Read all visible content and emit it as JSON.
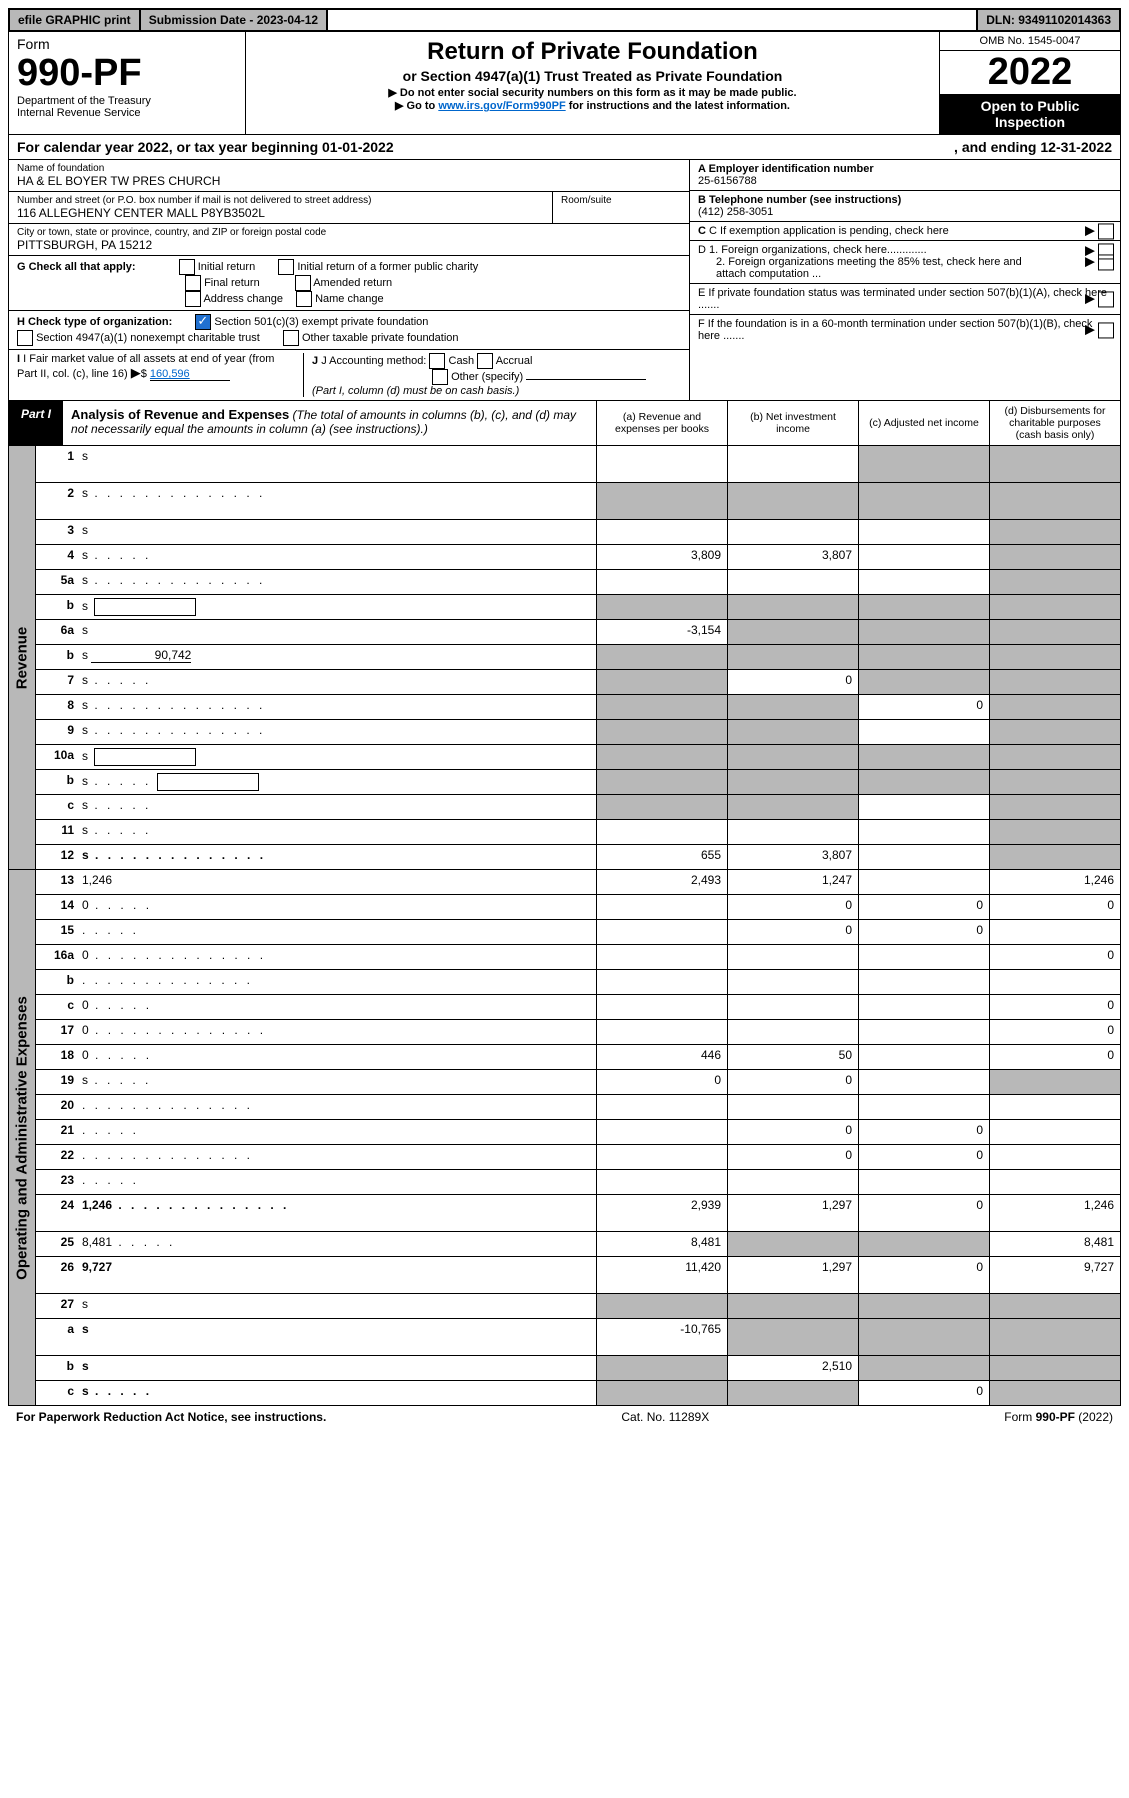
{
  "topbar": {
    "efile": "efile GRAPHIC print",
    "subdate_label": "Submission Date - ",
    "subdate": "2023-04-12",
    "dln_label": "DLN: ",
    "dln": "93491102014363"
  },
  "header": {
    "form_word": "Form",
    "form_num": "990-PF",
    "dept1": "Department of the Treasury",
    "dept2": "Internal Revenue Service",
    "title": "Return of Private Foundation",
    "subtitle": "or Section 4947(a)(1) Trust Treated as Private Foundation",
    "note1": "▶ Do not enter social security numbers on this form as it may be made public.",
    "note2a": "▶ Go to ",
    "note2_link": "www.irs.gov/Form990PF",
    "note2b": " for instructions and the latest information.",
    "omb": "OMB No. 1545-0047",
    "year": "2022",
    "open1": "Open to Public",
    "open2": "Inspection"
  },
  "calyear": {
    "left": "For calendar year 2022, or tax year beginning 01-01-2022",
    "right": ", and ending 12-31-2022"
  },
  "entity": {
    "name_label": "Name of foundation",
    "name": "HA & EL BOYER TW PRES CHURCH",
    "addr_label": "Number and street (or P.O. box number if mail is not delivered to street address)",
    "addr": "116 ALLEGHENY CENTER MALL P8YB3502L",
    "room_label": "Room/suite",
    "city_label": "City or town, state or province, country, and ZIP or foreign postal code",
    "city": "PITTSBURGH, PA  15212",
    "a_label": "A Employer identification number",
    "a_val": "25-6156788",
    "b_label": "B Telephone number (see instructions)",
    "b_val": "(412) 258-3051",
    "c_label": "C If exemption application is pending, check here",
    "d1": "D 1. Foreign organizations, check here.............",
    "d2": "2. Foreign organizations meeting the 85% test, check here and attach computation ...",
    "e_label": "E  If private foundation status was terminated under section 507(b)(1)(A), check here .......",
    "f_label": "F  If the foundation is in a 60-month termination under section 507(b)(1)(B), check here .......",
    "g_label": "G Check all that apply:",
    "g_opts": [
      "Initial return",
      "Initial return of a former public charity",
      "Final return",
      "Amended return",
      "Address change",
      "Name change"
    ],
    "h_label": "H Check type of organization:",
    "h_opts": [
      "Section 501(c)(3) exempt private foundation",
      "Section 4947(a)(1) nonexempt charitable trust",
      "Other taxable private foundation"
    ],
    "i_label": "I Fair market value of all assets at end of year (from Part II, col. (c), line 16)",
    "i_val": "160,596",
    "j_label": "J Accounting method:",
    "j_opts": [
      "Cash",
      "Accrual",
      "Other (specify)"
    ],
    "j_note": "(Part I, column (d) must be on cash basis.)"
  },
  "part": {
    "label": "Part I",
    "title": "Analysis of Revenue and Expenses",
    "title_note": " (The total of amounts in columns (b), (c), and (d) may not necessarily equal the amounts in column (a) (see instructions).)",
    "col_a": "(a)   Revenue and expenses per books",
    "col_b": "(b)   Net investment income",
    "col_c": "(c)   Adjusted net income",
    "col_d": "(d)  Disbursements for charitable purposes (cash basis only)"
  },
  "sidelabels": {
    "revenue": "Revenue",
    "expenses": "Operating and Administrative Expenses"
  },
  "rows": [
    {
      "n": "1",
      "d": "s",
      "a": "",
      "b": "",
      "c": "s",
      "tall": true
    },
    {
      "n": "2",
      "d": "s",
      "a": "s",
      "b": "s",
      "c": "s",
      "tall": true,
      "hascheck": true,
      "dots": true,
      "bold_not": true
    },
    {
      "n": "3",
      "d": "s",
      "a": "",
      "b": "",
      "c": ""
    },
    {
      "n": "4",
      "d": "s",
      "a": "3,809",
      "b": "3,807",
      "c": "",
      "dots": "short"
    },
    {
      "n": "5a",
      "d": "s",
      "a": "",
      "b": "",
      "c": "",
      "dots": true
    },
    {
      "n": "b",
      "d": "s",
      "a": "s",
      "b": "s",
      "c": "s",
      "box": true
    },
    {
      "n": "6a",
      "d": "s",
      "a": "-3,154",
      "b": "s",
      "c": "s"
    },
    {
      "n": "b",
      "d": "s",
      "a": "s",
      "b": "s",
      "c": "s",
      "inline_val": "90,742",
      "underline": true
    },
    {
      "n": "7",
      "d": "s",
      "a": "s",
      "b": "0",
      "c": "s",
      "dots": "short"
    },
    {
      "n": "8",
      "d": "s",
      "a": "s",
      "b": "s",
      "c": "0",
      "dots": true
    },
    {
      "n": "9",
      "d": "s",
      "a": "s",
      "b": "s",
      "c": "",
      "dots": true
    },
    {
      "n": "10a",
      "d": "s",
      "a": "s",
      "b": "s",
      "c": "s",
      "box": true
    },
    {
      "n": "b",
      "d": "s",
      "a": "s",
      "b": "s",
      "c": "s",
      "box": true,
      "dots": "short"
    },
    {
      "n": "c",
      "d": "s",
      "a": "s",
      "b": "s",
      "c": "",
      "dots": "short"
    },
    {
      "n": "11",
      "d": "s",
      "a": "",
      "b": "",
      "c": "",
      "dots": "short"
    },
    {
      "n": "12",
      "d": "s",
      "a": "655",
      "b": "3,807",
      "c": "",
      "bold": true,
      "dots": true
    }
  ],
  "exp_rows": [
    {
      "n": "13",
      "d": "1,246",
      "a": "2,493",
      "b": "1,247",
      "c": ""
    },
    {
      "n": "14",
      "d": "0",
      "a": "",
      "b": "0",
      "c": "0",
      "dots": "short"
    },
    {
      "n": "15",
      "d": "",
      "a": "",
      "b": "0",
      "c": "0",
      "dots": "short"
    },
    {
      "n": "16a",
      "d": "0",
      "a": "",
      "b": "",
      "c": "",
      "dots": true
    },
    {
      "n": "b",
      "d": "",
      "a": "",
      "b": "",
      "c": "",
      "dots": true
    },
    {
      "n": "c",
      "d": "0",
      "a": "",
      "b": "",
      "c": "",
      "dots": "short"
    },
    {
      "n": "17",
      "d": "0",
      "a": "",
      "b": "",
      "c": "",
      "dots": true
    },
    {
      "n": "18",
      "d": "0",
      "a": "446",
      "b": "50",
      "c": "",
      "dots": "short"
    },
    {
      "n": "19",
      "d": "s",
      "a": "0",
      "b": "0",
      "c": "",
      "dots": "short"
    },
    {
      "n": "20",
      "d": "",
      "a": "",
      "b": "",
      "c": "",
      "dots": true
    },
    {
      "n": "21",
      "d": "",
      "a": "",
      "b": "0",
      "c": "0",
      "dots": "short"
    },
    {
      "n": "22",
      "d": "",
      "a": "",
      "b": "0",
      "c": "0",
      "dots": true
    },
    {
      "n": "23",
      "d": "",
      "a": "",
      "b": "",
      "c": "",
      "dots": "short"
    },
    {
      "n": "24",
      "d": "1,246",
      "a": "2,939",
      "b": "1,297",
      "c": "0",
      "bold": true,
      "tall": true,
      "dots": true
    },
    {
      "n": "25",
      "d": "8,481",
      "a": "8,481",
      "b": "s",
      "c": "s",
      "dots": "short"
    },
    {
      "n": "26",
      "d": "9,727",
      "a": "11,420",
      "b": "1,297",
      "c": "0",
      "bold": true,
      "tall": true
    },
    {
      "n": "27",
      "d": "s",
      "a": "s",
      "b": "s",
      "c": "s"
    },
    {
      "n": "a",
      "d": "s",
      "a": "-10,765",
      "b": "s",
      "c": "s",
      "bold": true,
      "tall": true
    },
    {
      "n": "b",
      "d": "s",
      "a": "s",
      "b": "2,510",
      "c": "s",
      "bold": true
    },
    {
      "n": "c",
      "d": "s",
      "a": "s",
      "b": "s",
      "c": "0",
      "bold": true,
      "dots": "short"
    }
  ],
  "footer": {
    "left": "For Paperwork Reduction Act Notice, see instructions.",
    "center": "Cat. No. 11289X",
    "right": "Form 990-PF (2022)"
  },
  "colors": {
    "shade": "#b8b8b8",
    "link": "#0066cc",
    "check": "#2070d0"
  }
}
